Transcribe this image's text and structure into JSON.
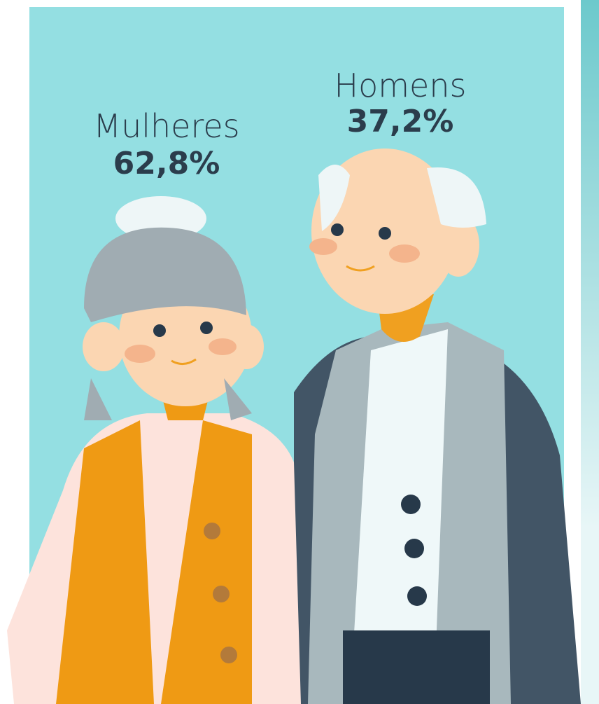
{
  "groups": [
    {
      "label": "Mulheres",
      "value": "62,8%"
    },
    {
      "label": "Homens",
      "value": "37,2%"
    }
  ]
}
